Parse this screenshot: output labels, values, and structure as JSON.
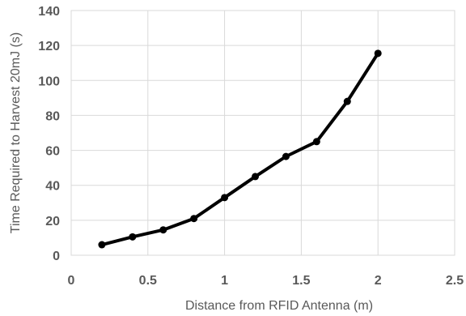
{
  "chart_data": {
    "type": "line",
    "title": "",
    "xlabel": "Distance from RFID Antenna (m)",
    "ylabel": "Time Required to Harvest 20mJ (s)",
    "xlim": [
      0,
      2.5
    ],
    "ylim": [
      0,
      140
    ],
    "x_ticks": [
      "0",
      "0.5",
      "1",
      "1.5",
      "2",
      "2.5"
    ],
    "y_ticks": [
      "0",
      "20",
      "40",
      "60",
      "80",
      "100",
      "120",
      "140"
    ],
    "x_tick_values": [
      0,
      0.5,
      1,
      1.5,
      2,
      2.5
    ],
    "y_tick_values": [
      0,
      20,
      40,
      60,
      80,
      100,
      120,
      140
    ],
    "grid": "vertical and horizontal",
    "legend": "none",
    "series": [
      {
        "color": "#000000",
        "x": [
          0.2,
          0.4,
          0.6,
          0.8,
          1.0,
          1.2,
          1.4,
          1.6,
          1.8,
          2.0
        ],
        "y": [
          6,
          10.5,
          14.5,
          21,
          33,
          45,
          56.5,
          65,
          88,
          115.5
        ]
      }
    ]
  }
}
